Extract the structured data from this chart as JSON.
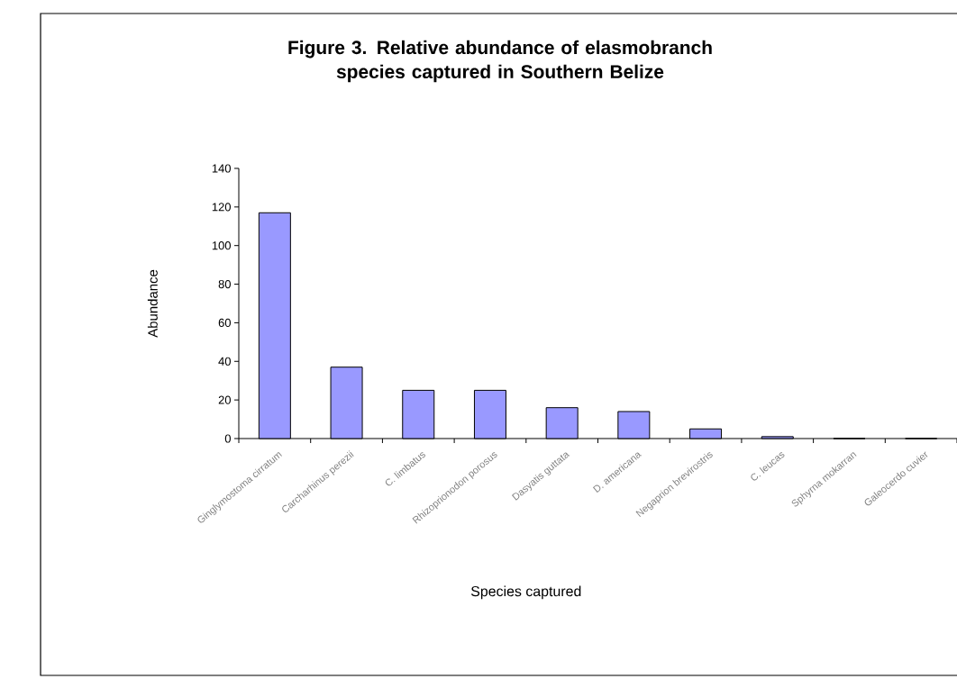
{
  "chart_data": {
    "type": "bar",
    "title": "Figure 3. Relative abundance of elasmobranch species captured in Southern Belize",
    "xlabel": "Species captured",
    "ylabel": "Abundance",
    "categories": [
      "Ginglymostoma cirratum",
      "Carcharhinus perezii",
      "C. limbatus",
      "Rhizoprionodon porosus",
      "Dasyatis guttata",
      "D. americana",
      "Negaprion brevirostris",
      "C. leucas",
      "Sphyrna mokarran",
      "Galeocerdo cuvier"
    ],
    "values": [
      117,
      37,
      25,
      25,
      16,
      14,
      5,
      1,
      0,
      0
    ],
    "color": "#9999ff",
    "ylim": [
      0,
      140
    ],
    "yticks": [
      0,
      20,
      40,
      60,
      80,
      100,
      120,
      140
    ],
    "grid": false
  }
}
